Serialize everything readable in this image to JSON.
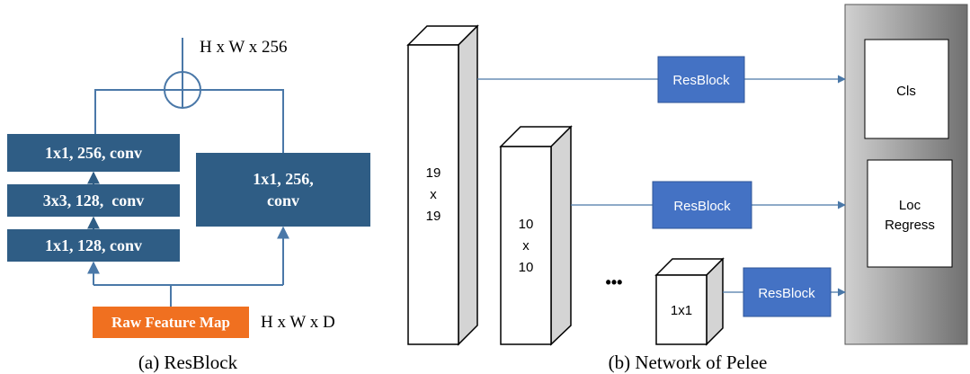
{
  "left_panel": {
    "output_dim": "H x W x 256",
    "conv_top": "1x1, 256, conv",
    "conv_mid": "3x3, 128,  conv",
    "conv_bot": "1x1, 128, conv",
    "shortcut_line1": "1x1, 256,",
    "shortcut_line2": "conv",
    "input_label": "Raw Feature Map",
    "input_dim": "H x W x D",
    "caption": "(a) ResBlock"
  },
  "right_panel": {
    "fm1": [
      "19",
      "x",
      "19"
    ],
    "fm2": [
      "10",
      "x",
      "10"
    ],
    "fm3": "1x1",
    "ellipsis": "•••",
    "resblock_label": "ResBlock",
    "cls_label": "Cls",
    "loc_line1": "Loc",
    "loc_line2": "Regress",
    "caption": "(b) Network of Pelee"
  },
  "colors": {
    "block_blue": "#2f5d85",
    "line_blue": "#4a78a8",
    "input_orange": "#f07020",
    "resblock_blue": "#4472c4"
  }
}
